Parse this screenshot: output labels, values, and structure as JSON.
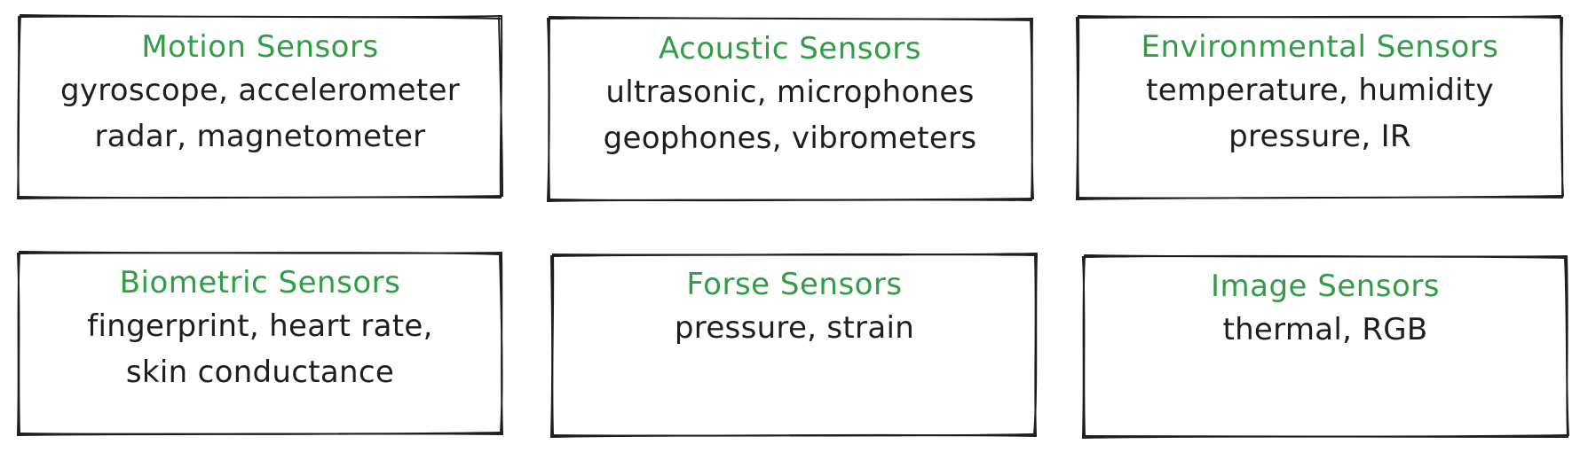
{
  "boxes": [
    {
      "title": "Motion Sensors",
      "lines": [
        "gyroscope, accelerometer",
        "radar, magnetometer"
      ]
    },
    {
      "title": "Acoustic Sensors",
      "lines": [
        "ultrasonic, microphones",
        "geophones, vibrometers"
      ]
    },
    {
      "title": "Environmental Sensors",
      "lines": [
        "temperature, humidity",
        "pressure, IR"
      ]
    },
    {
      "title": "Biometric Sensors",
      "lines": [
        "fingerprint, heart rate,",
        "skin conductance"
      ]
    },
    {
      "title": "Forse Sensors",
      "lines": [
        "pressure, strain"
      ]
    },
    {
      "title": "Image Sensors",
      "lines": [
        "thermal, RGB"
      ]
    }
  ],
  "colors": {
    "title": "#2f9e44",
    "text": "#1e1e1e",
    "stroke": "#1e1e1e",
    "background": "#ffffff"
  }
}
